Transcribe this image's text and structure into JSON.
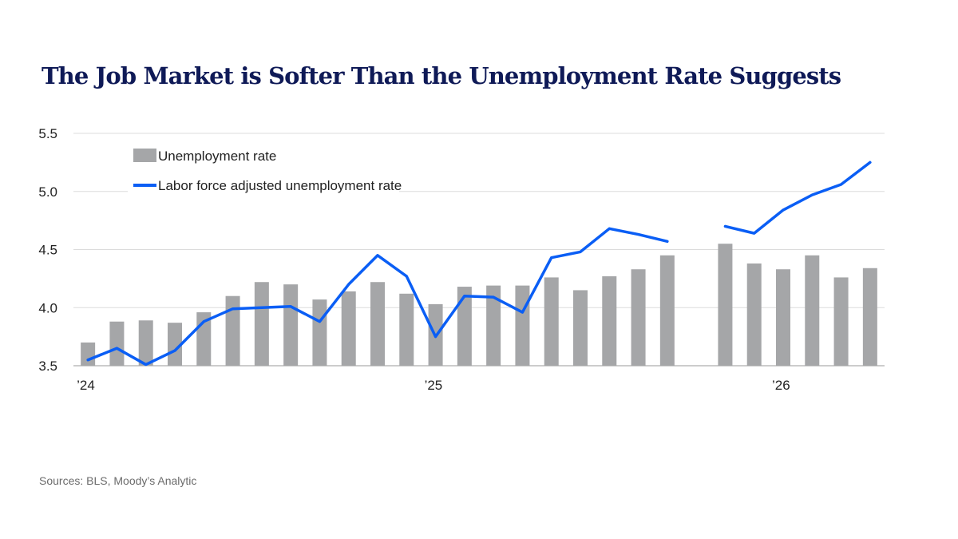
{
  "title": "The Job Market is Softer Than the Unemployment Rate Suggests",
  "source": "Sources: BLS, Moody’s Analytic",
  "chart_data": {
    "type": "bar+line",
    "ylim": [
      3.5,
      5.5
    ],
    "yticks": [
      "3.5",
      "4.0",
      "4.5",
      "5.0",
      "5.5"
    ],
    "grid": true,
    "legend_position": "top-left",
    "x_labels": [
      {
        "index": 0,
        "label": "’24"
      },
      {
        "index": 12,
        "label": "’25"
      },
      {
        "index": 24,
        "label": "’26"
      }
    ],
    "colors": {
      "bars": "#a5a6a8",
      "line": "#0a5ef5"
    },
    "series": [
      {
        "name": "Unemployment rate",
        "type": "bar",
        "values": [
          3.7,
          3.88,
          3.89,
          3.87,
          3.96,
          4.1,
          4.22,
          4.2,
          4.07,
          4.14,
          4.22,
          4.12,
          4.03,
          4.18,
          4.19,
          4.19,
          4.26,
          4.15,
          4.27,
          4.33,
          4.45,
          null,
          4.55,
          4.38,
          4.33,
          4.45,
          4.26,
          4.34
        ]
      },
      {
        "name": "Labor force adjusted unemployment rate",
        "type": "line",
        "values": [
          3.55,
          3.65,
          3.51,
          3.63,
          3.88,
          3.99,
          4.0,
          4.01,
          3.88,
          4.2,
          4.45,
          4.27,
          3.75,
          4.1,
          4.09,
          3.96,
          4.43,
          4.48,
          4.68,
          4.63,
          4.57,
          null,
          4.7,
          4.64,
          4.84,
          4.97,
          5.06,
          5.25
        ]
      }
    ]
  }
}
